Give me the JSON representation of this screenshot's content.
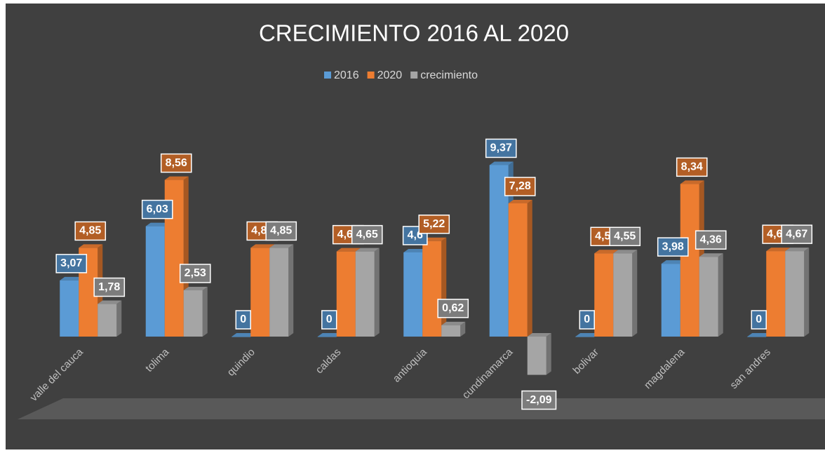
{
  "chart_data": {
    "type": "bar3d",
    "title": "CRECIMIENTO 2016 AL 2020",
    "categories": [
      "valle del cauca",
      "tolima",
      "quindio",
      "caldas",
      "antioquia",
      "cundinamarca",
      "bolivar",
      "magdalena",
      "san andres"
    ],
    "series": [
      {
        "name": "2016",
        "color": "#5b9bd5",
        "values": [
          3.07,
          6.03,
          0,
          0,
          4.6,
          9.37,
          0,
          3.98,
          0
        ],
        "value_labels": [
          "3,07",
          "6,03",
          "0",
          "0",
          "4,6",
          "9,37",
          "0",
          "3,98",
          "0"
        ]
      },
      {
        "name": "2020",
        "color": "#ed7d31",
        "values": [
          4.85,
          8.56,
          4.85,
          4.65,
          5.22,
          7.28,
          4.55,
          8.34,
          4.67
        ],
        "value_labels": [
          "4,85",
          "8,56",
          "4,85",
          "4,65",
          "5,22",
          "7,28",
          "4,55",
          "8,34",
          "4,67"
        ]
      },
      {
        "name": "crecimiento",
        "color": "#a5a5a5",
        "values": [
          1.78,
          2.53,
          4.85,
          4.65,
          0.62,
          -2.09,
          4.55,
          4.36,
          4.67
        ],
        "value_labels": [
          "1,78",
          "2,53",
          "4,85",
          "4,65",
          "0,62",
          "-2,09",
          "4,55",
          "4,36",
          "4,67"
        ]
      }
    ],
    "legend": "top"
  }
}
